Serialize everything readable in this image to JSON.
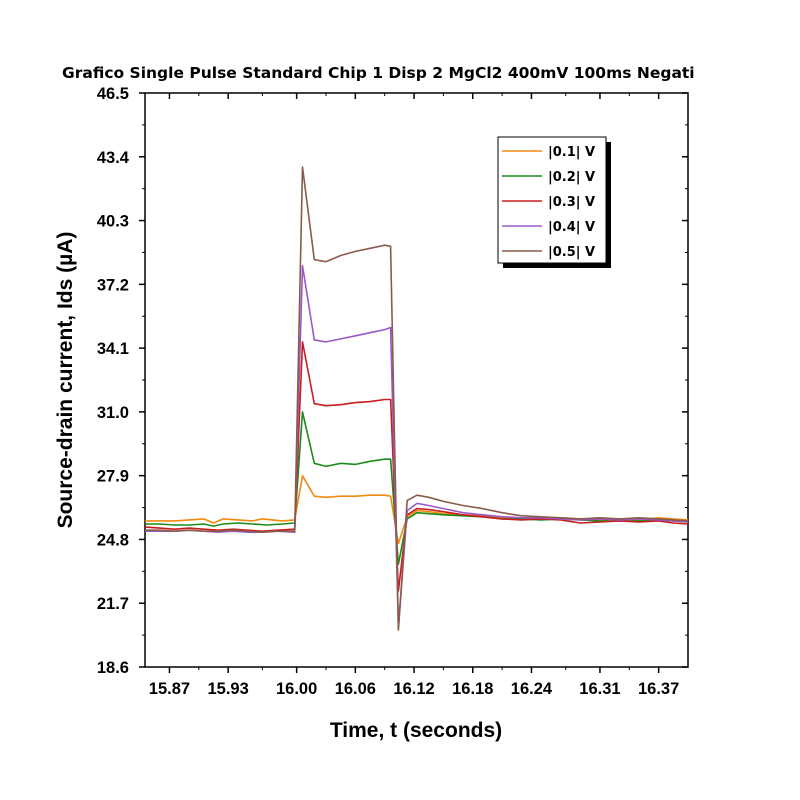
{
  "chart_data": {
    "type": "line",
    "title": "Grafico Single Pulse Standard Chip 1 Disp 2 MgCl2 400mV 100ms Negati",
    "xlabel": "Time, t (seconds)",
    "ylabel": "Source-drain current, Ids (µA)",
    "xlim": [
      15.845,
      16.4
    ],
    "ylim": [
      18.6,
      46.5
    ],
    "x_tick_labels": [
      "15.87",
      "15.93",
      "16.00",
      "16.06",
      "16.12",
      "16.18",
      "16.24",
      "16.31",
      "16.37"
    ],
    "y_tick_labels": [
      "18.6",
      "21.7",
      "24.8",
      "27.9",
      "31.0",
      "34.1",
      "37.2",
      "40.3",
      "43.4",
      "46.5"
    ],
    "legend_position": "top-right",
    "series": [
      {
        "name": "|0.1| V",
        "color": "#f08a10",
        "points": [
          [
            15.845,
            25.7
          ],
          [
            15.86,
            25.7
          ],
          [
            15.875,
            25.7
          ],
          [
            15.89,
            25.75
          ],
          [
            15.905,
            25.8
          ],
          [
            15.915,
            25.6
          ],
          [
            15.925,
            25.8
          ],
          [
            15.94,
            25.75
          ],
          [
            15.955,
            25.7
          ],
          [
            15.965,
            25.8
          ],
          [
            15.985,
            25.7
          ],
          [
            15.998,
            25.75
          ],
          [
            16.006,
            27.9
          ],
          [
            16.018,
            26.9
          ],
          [
            16.03,
            26.85
          ],
          [
            16.045,
            26.9
          ],
          [
            16.06,
            26.9
          ],
          [
            16.075,
            26.95
          ],
          [
            16.09,
            26.95
          ],
          [
            16.096,
            26.9
          ],
          [
            16.104,
            24.6
          ],
          [
            16.113,
            25.9
          ],
          [
            16.123,
            26.2
          ],
          [
            16.135,
            26.15
          ],
          [
            16.15,
            26.05
          ],
          [
            16.17,
            26.0
          ],
          [
            16.19,
            25.95
          ],
          [
            16.21,
            25.85
          ],
          [
            16.23,
            25.8
          ],
          [
            16.25,
            25.8
          ],
          [
            16.27,
            25.85
          ],
          [
            16.29,
            25.8
          ],
          [
            16.31,
            25.75
          ],
          [
            16.33,
            25.8
          ],
          [
            16.35,
            25.75
          ],
          [
            16.37,
            25.85
          ],
          [
            16.385,
            25.8
          ],
          [
            16.4,
            25.75
          ]
        ]
      },
      {
        "name": "|0.2| V",
        "color": "#1a8c1a",
        "points": [
          [
            15.845,
            25.55
          ],
          [
            15.86,
            25.55
          ],
          [
            15.875,
            25.5
          ],
          [
            15.89,
            25.5
          ],
          [
            15.905,
            25.55
          ],
          [
            15.915,
            25.45
          ],
          [
            15.925,
            25.55
          ],
          [
            15.94,
            25.6
          ],
          [
            15.955,
            25.55
          ],
          [
            15.97,
            25.5
          ],
          [
            15.985,
            25.55
          ],
          [
            15.998,
            25.6
          ],
          [
            16.006,
            31.0
          ],
          [
            16.018,
            28.5
          ],
          [
            16.03,
            28.35
          ],
          [
            16.045,
            28.5
          ],
          [
            16.06,
            28.45
          ],
          [
            16.075,
            28.6
          ],
          [
            16.09,
            28.7
          ],
          [
            16.096,
            28.7
          ],
          [
            16.104,
            23.6
          ],
          [
            16.113,
            25.8
          ],
          [
            16.123,
            26.1
          ],
          [
            16.135,
            26.05
          ],
          [
            16.15,
            26.0
          ],
          [
            16.17,
            25.95
          ],
          [
            16.19,
            25.9
          ],
          [
            16.21,
            25.8
          ],
          [
            16.23,
            25.8
          ],
          [
            16.25,
            25.75
          ],
          [
            16.27,
            25.8
          ],
          [
            16.29,
            25.75
          ],
          [
            16.31,
            25.7
          ],
          [
            16.33,
            25.7
          ],
          [
            16.35,
            25.7
          ],
          [
            16.37,
            25.75
          ],
          [
            16.385,
            25.7
          ],
          [
            16.4,
            25.65
          ]
        ]
      },
      {
        "name": "|0.3| V",
        "color": "#c81e1e",
        "points": [
          [
            15.845,
            25.4
          ],
          [
            15.86,
            25.35
          ],
          [
            15.875,
            25.3
          ],
          [
            15.89,
            25.35
          ],
          [
            15.905,
            25.3
          ],
          [
            15.92,
            25.25
          ],
          [
            15.935,
            25.3
          ],
          [
            15.95,
            25.25
          ],
          [
            15.965,
            25.2
          ],
          [
            15.98,
            25.25
          ],
          [
            15.998,
            25.3
          ],
          [
            16.006,
            34.4
          ],
          [
            16.018,
            31.4
          ],
          [
            16.03,
            31.3
          ],
          [
            16.045,
            31.35
          ],
          [
            16.06,
            31.45
          ],
          [
            16.075,
            31.5
          ],
          [
            16.09,
            31.6
          ],
          [
            16.096,
            31.6
          ],
          [
            16.104,
            22.3
          ],
          [
            16.113,
            26.0
          ],
          [
            16.123,
            26.3
          ],
          [
            16.135,
            26.25
          ],
          [
            16.15,
            26.15
          ],
          [
            16.17,
            26.0
          ],
          [
            16.19,
            25.9
          ],
          [
            16.21,
            25.8
          ],
          [
            16.23,
            25.75
          ],
          [
            16.25,
            25.8
          ],
          [
            16.27,
            25.75
          ],
          [
            16.29,
            25.6
          ],
          [
            16.31,
            25.65
          ],
          [
            16.33,
            25.7
          ],
          [
            16.35,
            25.65
          ],
          [
            16.37,
            25.7
          ],
          [
            16.385,
            25.6
          ],
          [
            16.4,
            25.55
          ]
        ]
      },
      {
        "name": "|0.4| V",
        "color": "#9b59c8",
        "points": [
          [
            15.845,
            25.2
          ],
          [
            15.86,
            25.2
          ],
          [
            15.875,
            25.2
          ],
          [
            15.89,
            25.25
          ],
          [
            15.905,
            25.2
          ],
          [
            15.92,
            25.15
          ],
          [
            15.935,
            25.2
          ],
          [
            15.95,
            25.15
          ],
          [
            15.965,
            25.15
          ],
          [
            15.98,
            25.2
          ],
          [
            15.998,
            25.15
          ],
          [
            16.006,
            38.1
          ],
          [
            16.018,
            34.5
          ],
          [
            16.03,
            34.4
          ],
          [
            16.045,
            34.55
          ],
          [
            16.06,
            34.7
          ],
          [
            16.075,
            34.85
          ],
          [
            16.09,
            35.0
          ],
          [
            16.096,
            35.1
          ],
          [
            16.104,
            20.5
          ],
          [
            16.113,
            26.2
          ],
          [
            16.123,
            26.55
          ],
          [
            16.135,
            26.45
          ],
          [
            16.15,
            26.3
          ],
          [
            16.17,
            26.1
          ],
          [
            16.19,
            26.0
          ],
          [
            16.21,
            25.9
          ],
          [
            16.23,
            25.85
          ],
          [
            16.25,
            25.85
          ],
          [
            16.27,
            25.8
          ],
          [
            16.29,
            25.75
          ],
          [
            16.31,
            25.8
          ],
          [
            16.33,
            25.75
          ],
          [
            16.35,
            25.8
          ],
          [
            16.37,
            25.75
          ],
          [
            16.385,
            25.7
          ],
          [
            16.4,
            25.65
          ]
        ]
      },
      {
        "name": "|0.5| V",
        "color": "#8b5a4a",
        "points": [
          [
            15.845,
            25.25
          ],
          [
            15.86,
            25.25
          ],
          [
            15.875,
            25.2
          ],
          [
            15.89,
            25.25
          ],
          [
            15.905,
            25.2
          ],
          [
            15.92,
            25.2
          ],
          [
            15.935,
            25.25
          ],
          [
            15.95,
            25.2
          ],
          [
            15.965,
            25.15
          ],
          [
            15.98,
            25.2
          ],
          [
            15.998,
            25.2
          ],
          [
            16.006,
            42.9
          ],
          [
            16.018,
            38.4
          ],
          [
            16.03,
            38.3
          ],
          [
            16.045,
            38.6
          ],
          [
            16.06,
            38.8
          ],
          [
            16.075,
            38.95
          ],
          [
            16.09,
            39.1
          ],
          [
            16.096,
            39.05
          ],
          [
            16.104,
            20.4
          ],
          [
            16.113,
            26.7
          ],
          [
            16.123,
            26.95
          ],
          [
            16.135,
            26.85
          ],
          [
            16.15,
            26.65
          ],
          [
            16.17,
            26.45
          ],
          [
            16.19,
            26.3
          ],
          [
            16.21,
            26.1
          ],
          [
            16.23,
            25.95
          ],
          [
            16.25,
            25.9
          ],
          [
            16.27,
            25.85
          ],
          [
            16.29,
            25.8
          ],
          [
            16.31,
            25.85
          ],
          [
            16.33,
            25.8
          ],
          [
            16.35,
            25.85
          ],
          [
            16.37,
            25.8
          ],
          [
            16.385,
            25.75
          ],
          [
            16.4,
            25.7
          ]
        ]
      }
    ]
  }
}
